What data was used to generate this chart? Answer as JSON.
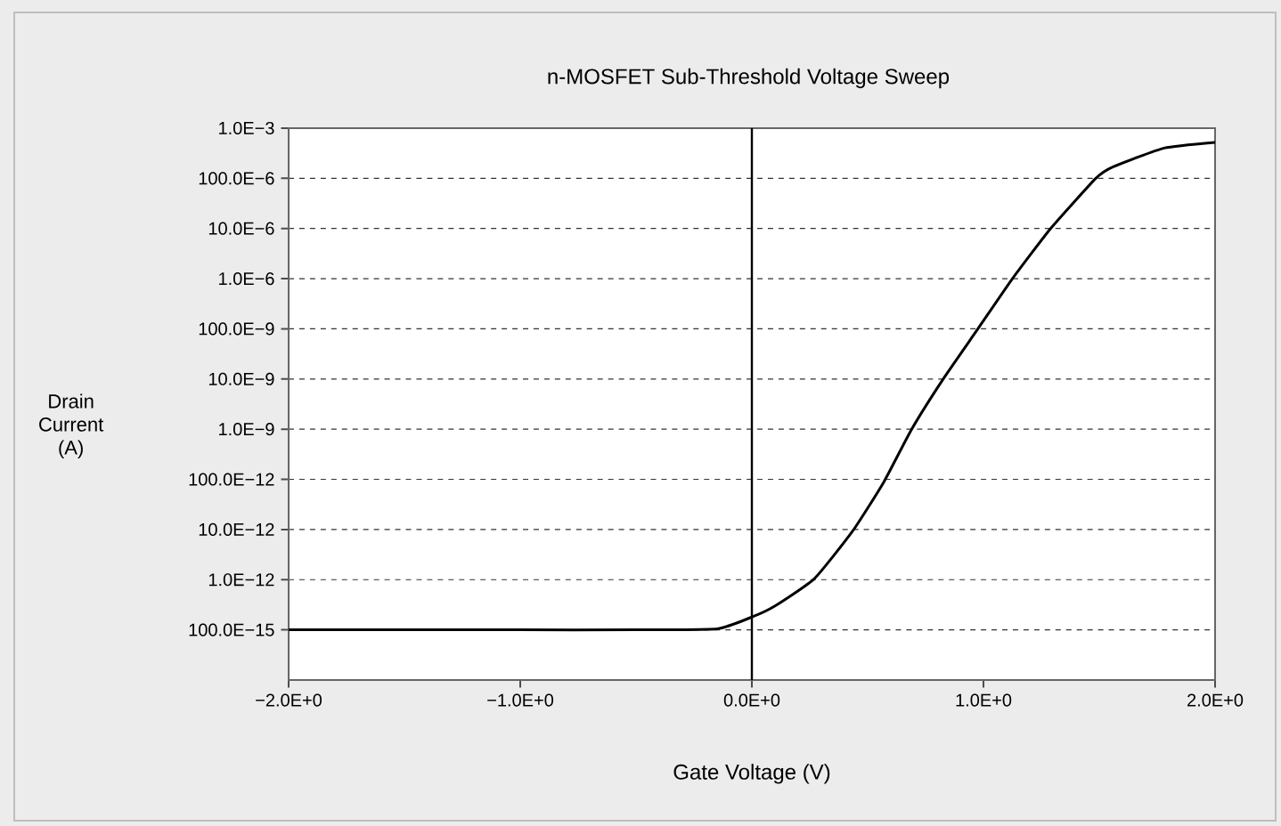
{
  "chart_data": {
    "type": "line",
    "title": "n-MOSFET Sub-Threshold Voltage Sweep",
    "xlabel": "Gate Voltage (V)",
    "ylabel": "Drain Current (A)",
    "log": "y",
    "grid": "y",
    "marker": "none",
    "line_style": "solid",
    "x": [
      -2.0,
      -1.0,
      -0.5,
      -0.15,
      0.0,
      0.1,
      0.27,
      0.435,
      0.57,
      0.69,
      0.826,
      0.976,
      1.125,
      1.29,
      1.485,
      1.56,
      1.78,
      2.0
    ],
    "series": [
      {
        "color": "#000000",
        "values": [
          1e-13,
          1e-13,
          1e-13,
          1.05e-13,
          1.8e-13,
          3e-13,
          1.05e-12,
          9.3e-12,
          8.9e-11,
          1e-09,
          1e-08,
          1e-07,
          1e-06,
          1e-05,
          0.0001,
          0.00017,
          0.0004,
          0.00052
        ]
      }
    ],
    "xlim": [
      -2,
      2
    ],
    "ylim": [
      1e-14,
      0.001
    ],
    "xticks": [
      {
        "value": -2,
        "label": "−2.0E+0"
      },
      {
        "value": -1,
        "label": "−1.0E+0"
      },
      {
        "value": 0,
        "label": "0.0E+0"
      },
      {
        "value": 1,
        "label": "1.0E+0"
      },
      {
        "value": 2,
        "label": "2.0E+0"
      }
    ],
    "yticks": [
      {
        "value": 0.001,
        "label": "1.0E−3"
      },
      {
        "value": 0.0001,
        "label": "100.0E−6"
      },
      {
        "value": 1e-05,
        "label": "10.0E−6"
      },
      {
        "value": 1e-06,
        "label": "1.0E−6"
      },
      {
        "value": 1e-07,
        "label": "100.0E−9"
      },
      {
        "value": 1e-08,
        "label": "10.0E−9"
      },
      {
        "value": 1e-09,
        "label": "1.0E−9"
      },
      {
        "value": 1e-10,
        "label": "100.0E−12"
      },
      {
        "value": 1e-11,
        "label": "10.0E−12"
      },
      {
        "value": 1e-12,
        "label": "1.0E−12"
      },
      {
        "value": 1e-13,
        "label": "100.0E−15"
      }
    ],
    "ref_lines": [
      {
        "axis": "x",
        "value": 0,
        "color": "#000000"
      }
    ]
  }
}
